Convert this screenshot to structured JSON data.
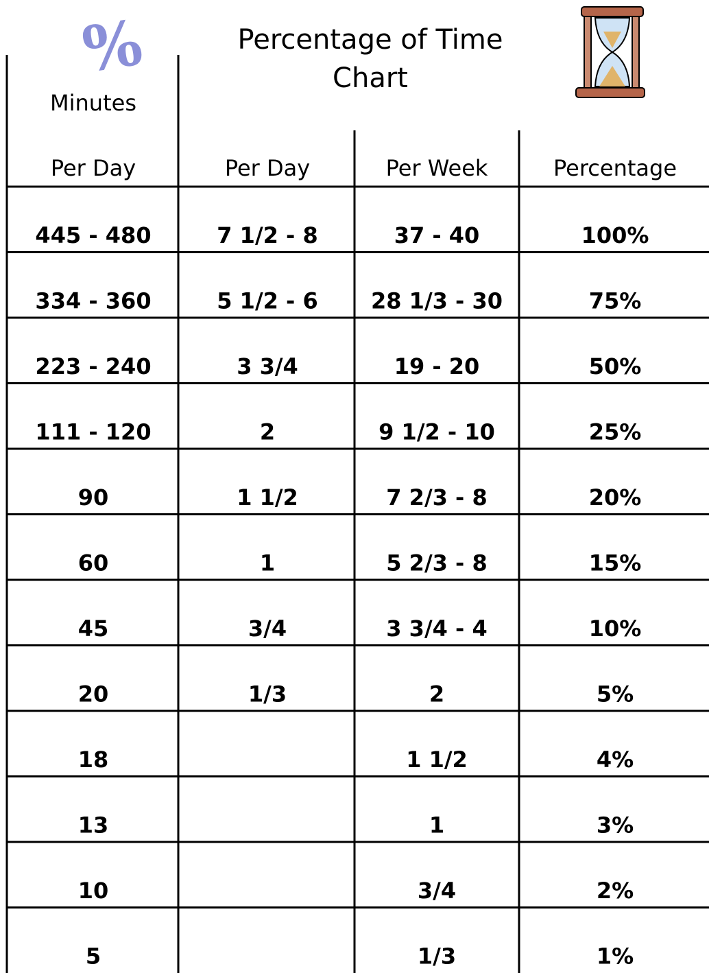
{
  "header": {
    "title": "Percentage of Time Chart",
    "minutes_label": "Minutes"
  },
  "table": {
    "columns": [
      "Per Day",
      "Per Day",
      "Per Week",
      "Percentage"
    ],
    "rows": [
      [
        "445 - 480",
        "7 1/2 - 8",
        "37 - 40",
        "100%"
      ],
      [
        "334 - 360",
        "5 1/2 - 6",
        "28 1/3 - 30",
        "75%"
      ],
      [
        "223 - 240",
        "3 3/4",
        "19 - 20",
        "50%"
      ],
      [
        "111 - 120",
        "2",
        "9 1/2 - 10",
        "25%"
      ],
      [
        "90",
        "1 1/2",
        "7 2/3 - 8",
        "20%"
      ],
      [
        "60",
        "1",
        "5 2/3 - 8",
        "15%"
      ],
      [
        "45",
        "3/4",
        "3 3/4 - 4",
        "10%"
      ],
      [
        "20",
        "1/3",
        "2",
        "5%"
      ],
      [
        "18",
        null,
        "1 1/2",
        "4%"
      ],
      [
        "13",
        null,
        "1",
        "3%"
      ],
      [
        "10",
        null,
        "3/4",
        "2%"
      ],
      [
        "5",
        null,
        "1/3",
        "1%"
      ]
    ]
  }
}
